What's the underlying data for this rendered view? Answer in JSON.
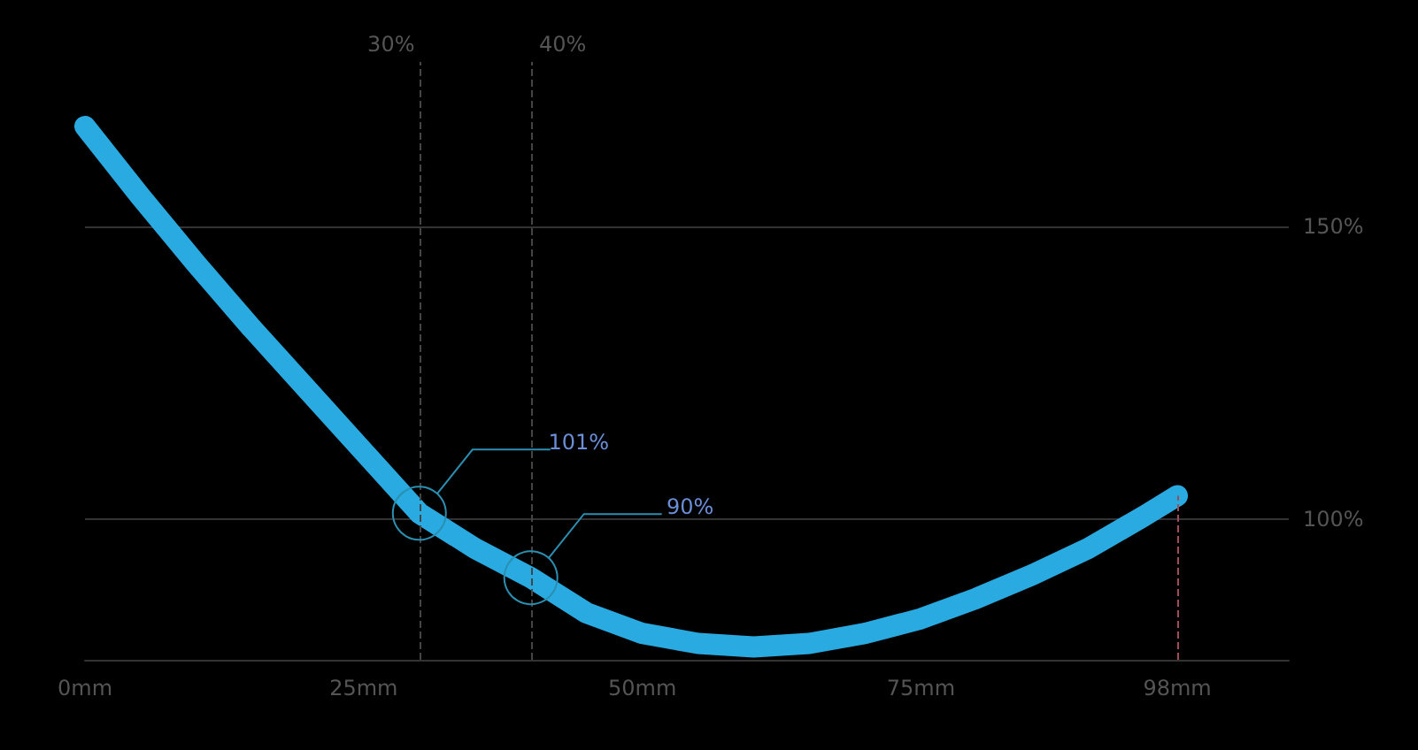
{
  "chart_data": {
    "type": "line",
    "x": [
      0,
      5,
      10,
      15,
      20,
      25,
      30,
      35,
      40,
      45,
      50,
      55,
      60,
      65,
      70,
      75,
      80,
      85,
      90,
      95,
      98
    ],
    "series": [
      {
        "color": "#29abe2",
        "values": [
          167,
          155,
          143.5,
          132.5,
          122,
          111.5,
          101,
          95,
          90,
          84,
          80.5,
          78.8,
          78.2,
          78.8,
          80.5,
          83,
          86.5,
          90.5,
          95,
          100.5,
          104
        ],
        "value_labels": [
          null,
          null,
          null,
          null,
          null,
          null,
          "101%",
          null,
          "90%",
          null,
          null,
          null,
          null,
          null,
          null,
          null,
          null,
          null,
          null,
          null,
          null
        ]
      }
    ],
    "xlim": [
      0,
      108
    ],
    "ylim": [
      76,
      178
    ],
    "xticks": [
      {
        "value": 0,
        "label": "0mm"
      },
      {
        "value": 25,
        "label": "25mm"
      },
      {
        "value": 50,
        "label": "50mm"
      },
      {
        "value": 75,
        "label": "75mm"
      },
      {
        "value": 98,
        "label": "98mm"
      }
    ],
    "yticks": [
      {
        "value": 100,
        "label": "100%"
      },
      {
        "value": 150,
        "label": "150%"
      }
    ],
    "grid": "y",
    "marker": "none",
    "line_style": "solid",
    "ref_lines": [
      {
        "axis": "x",
        "value": 30,
        "label": "30%",
        "color": "#444444",
        "line_style": "dashed"
      },
      {
        "axis": "x",
        "value": 40,
        "label": "40%",
        "color": "#444444",
        "line_style": "dashed"
      },
      {
        "axis": "x",
        "value": 98,
        "label": null,
        "color": "#a04a5a",
        "line_style": "dashed"
      }
    ]
  }
}
